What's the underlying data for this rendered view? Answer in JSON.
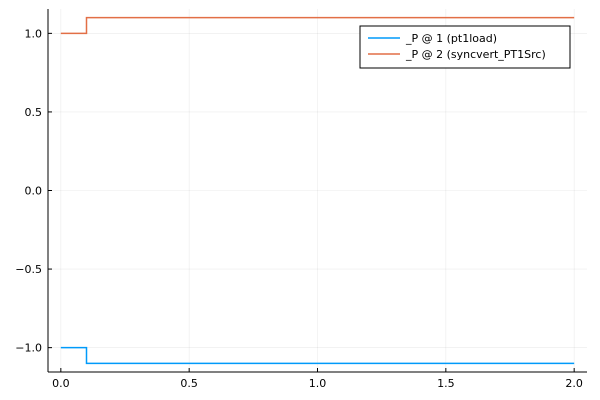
{
  "chart_data": {
    "type": "line",
    "title": "",
    "xlabel": "",
    "ylabel": "",
    "xlim": [
      -0.05,
      2.05
    ],
    "ylim": [
      -1.155,
      1.155
    ],
    "xticks": [
      0.0,
      0.5,
      1.0,
      1.5,
      2.0
    ],
    "xtick_labels": [
      "0.0",
      "0.5",
      "1.0",
      "1.5",
      "2.0"
    ],
    "yticks": [
      -1.0,
      -0.5,
      0.0,
      0.5,
      1.0
    ],
    "ytick_labels": [
      "−1.0",
      "−0.5",
      "0.0",
      "0.5",
      "1.0"
    ],
    "grid": true,
    "legend_position": "top-right",
    "series": [
      {
        "name": "_P @ 1 (pt1load)",
        "color": "#009AFA",
        "x": [
          0.0,
          0.1,
          0.1,
          2.0
        ],
        "y": [
          -1.0,
          -1.0,
          -1.1,
          -1.1
        ]
      },
      {
        "name": "_P @ 2 (syncvert_PT1Src)",
        "color": "#E26F46",
        "x": [
          0.0,
          0.1,
          0.1,
          2.0
        ],
        "y": [
          1.0,
          1.0,
          1.1,
          1.1
        ]
      }
    ]
  }
}
